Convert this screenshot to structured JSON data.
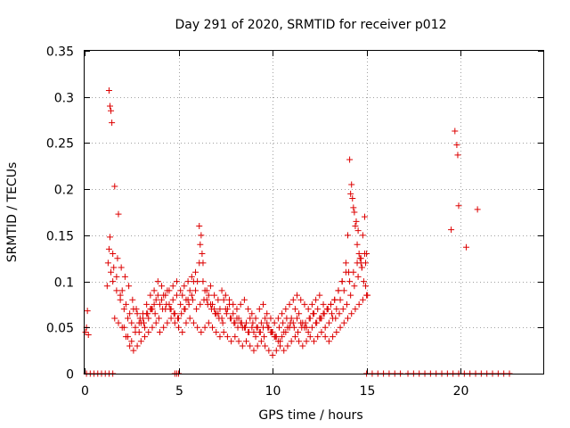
{
  "chart_data": {
    "type": "scatter",
    "title": "Day 291 of 2020, SRMTID for receiver p012",
    "xlabel": "GPS time / hours",
    "ylabel": "SRMTID / TECUs",
    "xlim": [
      0,
      24.4
    ],
    "ylim": [
      0,
      0.35
    ],
    "xticks": [
      0,
      5,
      10,
      15,
      20
    ],
    "yticks": [
      0,
      0.05,
      0.1,
      0.15,
      0.2,
      0.25,
      0.3,
      0.35
    ],
    "xtick_labels": [
      "0",
      "5",
      "10",
      "15",
      "20"
    ],
    "ytick_labels": [
      "0",
      "0.05",
      "0.1",
      "0.15",
      "0.2",
      "0.25",
      "0.3",
      "0.35"
    ],
    "grid": true,
    "marker": "+",
    "series": [
      {
        "name": "SRMTID",
        "color": "#dd0000",
        "x": [
          0.05,
          0.1,
          0.15,
          0.2,
          1.2,
          1.25,
          1.3,
          1.35,
          1.4,
          1.5,
          1.7,
          1.9,
          2.1,
          2.3,
          2.5,
          2.7,
          2.9,
          3.1,
          3.3,
          3.5,
          3.7,
          3.9,
          4.1,
          4.3,
          4.5,
          4.7,
          4.9,
          5.1,
          5.3,
          5.5,
          5.7,
          5.9,
          6.1,
          6.2,
          6.3,
          6.5,
          6.7,
          6.9,
          7.1,
          7.3,
          7.5,
          7.7,
          7.9,
          8.1,
          8.3,
          8.5,
          8.7,
          8.9,
          9.1,
          9.3,
          9.5,
          9.7,
          9.9,
          10.1,
          10.3,
          10.5,
          10.7,
          10.9,
          11.1,
          11.3,
          11.5,
          11.7,
          11.9,
          12.1,
          12.3,
          12.5,
          12.7,
          12.9,
          13.1,
          13.3,
          13.5,
          13.7,
          13.9,
          14.0,
          14.1,
          14.2,
          14.3,
          14.4,
          14.5,
          14.6,
          14.7,
          14.8,
          14.9,
          15.0,
          19.5,
          19.7,
          19.8,
          19.85,
          19.9,
          20.3,
          20.9,
          1.3,
          1.35,
          1.4,
          1.45,
          1.6,
          1.8,
          2.0,
          2.2,
          2.4,
          2.6,
          2.8,
          3.0,
          3.2,
          3.4,
          3.6,
          3.8,
          4.0,
          4.2,
          4.4,
          4.6,
          4.8,
          5.0,
          5.2,
          5.4,
          5.6,
          5.8,
          6.0,
          6.15,
          6.25,
          6.4,
          6.6,
          6.8,
          7.0,
          7.2,
          7.4,
          7.6,
          7.8,
          8.0,
          8.2,
          8.4,
          8.6,
          8.8,
          9.0,
          9.2,
          9.4,
          9.6,
          9.8,
          10.0,
          10.2,
          10.4,
          10.6,
          10.8,
          11.0,
          11.2,
          11.4,
          11.6,
          11.8,
          12.0,
          12.2,
          12.4,
          12.6,
          12.8,
          13.0,
          13.2,
          13.4,
          13.6,
          13.8,
          14.05,
          14.15,
          14.25,
          14.35,
          14.45,
          14.55,
          14.65,
          14.75,
          14.85,
          14.95,
          15.05,
          1.5,
          1.7,
          1.9,
          2.1,
          2.3,
          2.5,
          2.7,
          2.9,
          3.1,
          3.3,
          3.5,
          3.7,
          3.9,
          4.1,
          4.3,
          4.5,
          4.7,
          4.9,
          5.1,
          5.3,
          5.5,
          5.7,
          5.9,
          6.1,
          6.3,
          6.5,
          6.7,
          6.9,
          7.1,
          7.3,
          7.5,
          7.7,
          7.9,
          8.1,
          8.3,
          8.5,
          8.7,
          8.9,
          9.1,
          9.3,
          9.5,
          9.7,
          9.9,
          10.1,
          10.3,
          10.5,
          10.7,
          10.9,
          11.1,
          11.3,
          11.5,
          11.7,
          11.9,
          12.1,
          12.3,
          12.5,
          12.7,
          12.9,
          13.1,
          13.3,
          13.5,
          13.7,
          13.9,
          14.1,
          14.3,
          14.5,
          14.7,
          14.9,
          1.6,
          1.8,
          2.0,
          2.2,
          2.4,
          2.6,
          2.8,
          3.0,
          3.2,
          3.4,
          3.6,
          3.8,
          4.0,
          4.2,
          4.4,
          4.6,
          4.8,
          5.0,
          5.2,
          5.4,
          5.6,
          5.8,
          6.0,
          6.2,
          6.4,
          6.6,
          6.8,
          7.0,
          7.2,
          7.4,
          7.6,
          7.8,
          8.0,
          8.2,
          8.4,
          8.6,
          8.8,
          9.0,
          9.2,
          9.4,
          9.6,
          9.8,
          10.0,
          10.2,
          10.4,
          10.6,
          10.8,
          11.0,
          11.2,
          11.4,
          11.6,
          11.8,
          12.0,
          12.2,
          12.4,
          12.6,
          12.8,
          13.0,
          13.2,
          13.4,
          13.6,
          13.8,
          14.0,
          14.2,
          14.4,
          14.6,
          14.8,
          15.0,
          1.55,
          1.75,
          1.95,
          2.15,
          2.35,
          2.55,
          2.75,
          2.95,
          3.15,
          3.35,
          3.55,
          3.75,
          3.95,
          4.15,
          4.35,
          4.55,
          4.75,
          4.95,
          5.15,
          5.35,
          5.55,
          5.75,
          5.95,
          6.15,
          6.35,
          6.55,
          6.75,
          6.95,
          7.15,
          7.35,
          7.55,
          7.75,
          7.95,
          8.15,
          8.35,
          8.55,
          8.75,
          8.95,
          9.15,
          9.35,
          9.55,
          9.75,
          9.95,
          10.15,
          10.35,
          10.55,
          10.75,
          10.95,
          11.15,
          11.35,
          11.55,
          11.75,
          11.95,
          12.15,
          12.35,
          12.55,
          12.75,
          12.95,
          13.15,
          13.35,
          13.55,
          13.75,
          13.95,
          14.15,
          14.35,
          14.55,
          14.75,
          14.95,
          0.1,
          0.3,
          0.5,
          0.7,
          0.9,
          1.1,
          1.3,
          1.5,
          4.8,
          4.9,
          5.0,
          15.0,
          15.3,
          15.6,
          15.9,
          16.2,
          16.5,
          16.8,
          17.2,
          17.5,
          17.8,
          18.1,
          18.4,
          18.7,
          19.0,
          19.3,
          19.6,
          19.9,
          20.2,
          20.5,
          20.8,
          21.1,
          21.4,
          21.7,
          22.0,
          22.3,
          22.6
        ],
        "y": [
          0.045,
          0.05,
          0.068,
          0.042,
          0.095,
          0.12,
          0.135,
          0.148,
          0.11,
          0.13,
          0.105,
          0.085,
          0.07,
          0.06,
          0.055,
          0.05,
          0.045,
          0.06,
          0.065,
          0.07,
          0.075,
          0.085,
          0.08,
          0.07,
          0.075,
          0.08,
          0.085,
          0.075,
          0.07,
          0.08,
          0.085,
          0.09,
          0.16,
          0.15,
          0.12,
          0.08,
          0.075,
          0.07,
          0.065,
          0.06,
          0.07,
          0.075,
          0.065,
          0.06,
          0.055,
          0.05,
          0.045,
          0.05,
          0.04,
          0.045,
          0.05,
          0.055,
          0.045,
          0.04,
          0.035,
          0.04,
          0.045,
          0.05,
          0.055,
          0.06,
          0.055,
          0.05,
          0.045,
          0.05,
          0.055,
          0.06,
          0.065,
          0.07,
          0.075,
          0.08,
          0.09,
          0.1,
          0.12,
          0.15,
          0.232,
          0.205,
          0.18,
          0.16,
          0.14,
          0.13,
          0.12,
          0.15,
          0.17,
          0.13,
          0.156,
          0.263,
          0.248,
          0.237,
          0.182,
          0.137,
          0.178,
          0.307,
          0.29,
          0.285,
          0.272,
          0.203,
          0.173,
          0.09,
          0.075,
          0.065,
          0.07,
          0.065,
          0.055,
          0.05,
          0.06,
          0.07,
          0.08,
          0.075,
          0.085,
          0.09,
          0.07,
          0.065,
          0.06,
          0.085,
          0.08,
          0.09,
          0.1,
          0.1,
          0.14,
          0.13,
          0.09,
          0.085,
          0.075,
          0.065,
          0.07,
          0.08,
          0.07,
          0.06,
          0.055,
          0.06,
          0.05,
          0.055,
          0.06,
          0.045,
          0.05,
          0.055,
          0.06,
          0.05,
          0.045,
          0.04,
          0.035,
          0.045,
          0.05,
          0.06,
          0.07,
          0.065,
          0.055,
          0.05,
          0.06,
          0.065,
          0.07,
          0.06,
          0.05,
          0.055,
          0.06,
          0.07,
          0.08,
          0.09,
          0.11,
          0.195,
          0.19,
          0.175,
          0.165,
          0.155,
          0.125,
          0.115,
          0.1,
          0.095,
          0.085,
          0.1,
          0.09,
          0.08,
          0.05,
          0.04,
          0.035,
          0.045,
          0.055,
          0.065,
          0.075,
          0.085,
          0.09,
          0.1,
          0.095,
          0.085,
          0.09,
          0.095,
          0.1,
          0.09,
          0.095,
          0.1,
          0.105,
          0.11,
          0.12,
          0.1,
          0.09,
          0.095,
          0.085,
          0.08,
          0.09,
          0.085,
          0.08,
          0.075,
          0.07,
          0.075,
          0.08,
          0.07,
          0.065,
          0.06,
          0.07,
          0.075,
          0.065,
          0.06,
          0.055,
          0.06,
          0.065,
          0.07,
          0.075,
          0.08,
          0.085,
          0.08,
          0.075,
          0.07,
          0.075,
          0.08,
          0.085,
          0.075,
          0.07,
          0.075,
          0.08,
          0.09,
          0.1,
          0.11,
          0.1,
          0.11,
          0.12,
          0.125,
          0.13,
          0.06,
          0.055,
          0.05,
          0.04,
          0.03,
          0.025,
          0.03,
          0.035,
          0.04,
          0.045,
          0.05,
          0.055,
          0.045,
          0.05,
          0.055,
          0.06,
          0.055,
          0.05,
          0.045,
          0.055,
          0.06,
          0.055,
          0.05,
          0.045,
          0.05,
          0.055,
          0.05,
          0.045,
          0.04,
          0.045,
          0.04,
          0.035,
          0.04,
          0.035,
          0.03,
          0.035,
          0.03,
          0.025,
          0.03,
          0.035,
          0.03,
          0.025,
          0.02,
          0.025,
          0.03,
          0.025,
          0.03,
          0.035,
          0.04,
          0.035,
          0.03,
          0.035,
          0.04,
          0.035,
          0.04,
          0.045,
          0.04,
          0.035,
          0.04,
          0.045,
          0.05,
          0.055,
          0.06,
          0.065,
          0.07,
          0.075,
          0.08,
          0.085,
          0.115,
          0.125,
          0.115,
          0.105,
          0.095,
          0.08,
          0.07,
          0.06,
          0.055,
          0.065,
          0.07,
          0.065,
          0.06,
          0.07,
          0.075,
          0.07,
          0.065,
          0.06,
          0.065,
          0.07,
          0.075,
          0.08,
          0.07,
          0.075,
          0.08,
          0.075,
          0.07,
          0.065,
          0.06,
          0.055,
          0.065,
          0.06,
          0.055,
          0.05,
          0.055,
          0.05,
          0.045,
          0.055,
          0.05,
          0.045,
          0.04,
          0.05,
          0.045,
          0.04,
          0.05,
          0.055,
          0.06,
          0.055,
          0.05,
          0.045,
          0.05,
          0.055,
          0.06,
          0.065,
          0.055,
          0.06,
          0.065,
          0.07,
          0.065,
          0.06,
          0.065,
          0.07,
          0.075,
          0.085,
          0.095,
          0.105,
          0.115,
          0.12,
          0,
          0,
          0,
          0,
          0,
          0,
          0,
          0,
          0,
          0,
          0,
          0,
          0,
          0,
          0,
          0,
          0,
          0,
          0,
          0,
          0,
          0,
          0,
          0,
          0,
          0,
          0,
          0,
          0,
          0,
          0,
          0,
          0,
          0,
          0,
          0,
          0
        ]
      }
    ]
  }
}
